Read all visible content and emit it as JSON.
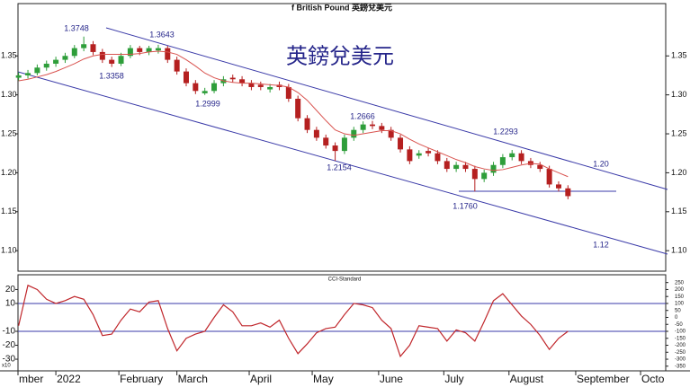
{
  "chart_data": [
    {
      "type": "candlestick",
      "title": "f British Pound 英鎊兌美元",
      "x": [
        -12,
        -9,
        -6,
        -3,
        0,
        3,
        6,
        9,
        12,
        15,
        18,
        21,
        24,
        27,
        30,
        33,
        36,
        39,
        42,
        45,
        48,
        51,
        54,
        57,
        60,
        63,
        66,
        69,
        72,
        75,
        78,
        81,
        84,
        87,
        90,
        93,
        96,
        99,
        102,
        105,
        108,
        111,
        114,
        117,
        120,
        123,
        126,
        129,
        132,
        135,
        138,
        141,
        144,
        147,
        150,
        153,
        156,
        159,
        162,
        165
      ],
      "open": [
        1.322,
        1.325,
        1.328,
        1.335,
        1.34,
        1.345,
        1.35,
        1.36,
        1.365,
        1.355,
        1.345,
        1.34,
        1.35,
        1.36,
        1.355,
        1.357,
        1.36,
        1.345,
        1.33,
        1.315,
        1.302,
        1.305,
        1.315,
        1.322,
        1.32,
        1.315,
        1.313,
        1.307,
        1.313,
        1.31,
        1.295,
        1.27,
        1.255,
        1.245,
        1.235,
        1.228,
        1.245,
        1.255,
        1.262,
        1.26,
        1.255,
        1.245,
        1.23,
        1.222,
        1.228,
        1.225,
        1.215,
        1.205,
        1.21,
        1.205,
        1.192,
        1.2,
        1.21,
        1.22,
        1.225,
        1.215,
        1.21,
        1.205,
        1.185,
        1.18
      ],
      "high": [
        1.329,
        1.332,
        1.339,
        1.344,
        1.349,
        1.354,
        1.364,
        1.3748,
        1.369,
        1.359,
        1.349,
        1.354,
        1.364,
        1.363,
        1.363,
        1.3643,
        1.363,
        1.349,
        1.334,
        1.319,
        1.309,
        1.319,
        1.324,
        1.326,
        1.324,
        1.319,
        1.317,
        1.314,
        1.317,
        1.314,
        1.299,
        1.274,
        1.259,
        1.249,
        1.239,
        1.249,
        1.259,
        1.266,
        1.2666,
        1.264,
        1.259,
        1.249,
        1.234,
        1.229,
        1.232,
        1.229,
        1.219,
        1.214,
        1.214,
        1.209,
        1.204,
        1.214,
        1.224,
        1.2293,
        1.229,
        1.219,
        1.214,
        1.209,
        1.189,
        1.184
      ],
      "low": [
        1.318,
        1.321,
        1.325,
        1.331,
        1.336,
        1.341,
        1.347,
        1.356,
        1.351,
        1.341,
        1.3358,
        1.337,
        1.347,
        1.351,
        1.351,
        1.353,
        1.341,
        1.326,
        1.311,
        1.301,
        1.2999,
        1.302,
        1.311,
        1.316,
        1.311,
        1.306,
        1.306,
        1.303,
        1.306,
        1.291,
        1.266,
        1.251,
        1.241,
        1.231,
        1.2154,
        1.224,
        1.241,
        1.251,
        1.256,
        1.251,
        1.241,
        1.226,
        1.211,
        1.218,
        1.221,
        1.211,
        1.201,
        1.201,
        1.201,
        1.176,
        1.188,
        1.196,
        1.206,
        1.216,
        1.211,
        1.206,
        1.201,
        1.181,
        1.176,
        1.166
      ],
      "close": [
        1.325,
        1.328,
        1.335,
        1.34,
        1.345,
        1.35,
        1.36,
        1.365,
        1.355,
        1.345,
        1.34,
        1.35,
        1.36,
        1.355,
        1.36,
        1.36,
        1.345,
        1.33,
        1.315,
        1.305,
        1.305,
        1.315,
        1.32,
        1.32,
        1.315,
        1.31,
        1.31,
        1.31,
        1.31,
        1.295,
        1.27,
        1.255,
        1.245,
        1.235,
        1.228,
        1.245,
        1.255,
        1.262,
        1.26,
        1.255,
        1.245,
        1.23,
        1.215,
        1.225,
        1.225,
        1.215,
        1.205,
        1.21,
        1.205,
        1.192,
        1.2,
        1.21,
        1.22,
        1.225,
        1.215,
        1.21,
        1.205,
        1.185,
        1.18,
        1.17
      ],
      "up_color": "#2e9e3a",
      "down_color": "#b52020",
      "series": [
        {
          "color": "#d9534f",
          "values": [
            1.318,
            1.32,
            1.323,
            1.326,
            1.33,
            1.335,
            1.34,
            1.346,
            1.35,
            1.352,
            1.352,
            1.352,
            1.352,
            1.353,
            1.355,
            1.356,
            1.355,
            1.352,
            1.345,
            1.337,
            1.328,
            1.322,
            1.318,
            1.316,
            1.315,
            1.315,
            1.314,
            1.313,
            1.312,
            1.31,
            1.303,
            1.293,
            1.28,
            1.267,
            1.255,
            1.25,
            1.248,
            1.25,
            1.252,
            1.254,
            1.254,
            1.25,
            1.243,
            1.237,
            1.232,
            1.227,
            1.222,
            1.217,
            1.213,
            1.208,
            1.205,
            1.203,
            1.204,
            1.207,
            1.21,
            1.212,
            1.211,
            1.205,
            1.2,
            1.195
          ]
        }
      ],
      "xlim": [
        -12.2,
        196.5
      ],
      "ylim": [
        1.076,
        1.416
      ],
      "yticks": [
        1.35,
        {
          "value": 1.3,
          "label": "1.30"
        },
        1.25,
        {
          "value": 1.2,
          "label": "1.20"
        },
        1.15,
        {
          "value": 1.1,
          "label": "1.10"
        }
      ],
      "annotations": [
        "1.3748",
        "1.3643",
        "1.3358",
        "1.2999",
        "1.2666",
        "1.2154",
        "1.2293",
        "1.1760",
        "1.20",
        "1.12",
        "英鎊兌美元"
      ]
    },
    {
      "type": "line",
      "title": "CCI-Standard",
      "scale_note": "x10",
      "x": [
        -12,
        -9,
        -6,
        -3,
        0,
        3,
        6,
        9,
        12,
        15,
        18,
        21,
        24,
        27,
        30,
        33,
        36,
        39,
        42,
        45,
        48,
        51,
        54,
        57,
        60,
        63,
        66,
        69,
        72,
        75,
        78,
        81,
        84,
        87,
        90,
        93,
        96,
        99,
        102,
        105,
        108,
        111,
        114,
        117,
        120,
        123,
        126,
        129,
        132,
        135,
        138,
        141,
        144,
        147,
        150,
        153,
        156,
        159,
        162,
        165
      ],
      "values": [
        -60,
        230,
        200,
        130,
        100,
        120,
        150,
        130,
        20,
        -130,
        -120,
        -20,
        60,
        40,
        110,
        120,
        -80,
        -240,
        -150,
        -120,
        -100,
        0,
        90,
        40,
        -60,
        -60,
        -40,
        -70,
        -20,
        -150,
        -260,
        -190,
        -110,
        -80,
        -70,
        20,
        100,
        90,
        70,
        -20,
        -80,
        -280,
        -200,
        -60,
        -70,
        -80,
        -170,
        -90,
        -110,
        -170,
        -30,
        120,
        170,
        90,
        10,
        -50,
        -130,
        -230,
        -150,
        -100
      ],
      "color": "#c0262b",
      "hlines": [
        100,
        -100
      ],
      "hline_color": "#3a3aa8",
      "xlim": [
        -12.2,
        196.5
      ],
      "ylim": [
        -377,
        293
      ],
      "yticks": [
        250,
        200,
        150,
        100,
        50,
        0,
        -50,
        -100,
        -150,
        -200,
        -250,
        -300,
        -350
      ],
      "yticks_left": [
        {
          "value": 200,
          "label": "20"
        },
        {
          "value": 100,
          "label": "10"
        },
        {
          "value": -100,
          "label": "-10"
        },
        {
          "value": -200,
          "label": "-20"
        },
        {
          "value": -300,
          "label": "-30"
        }
      ],
      "xticks": [
        {
          "value": -12.2,
          "label": "mber"
        },
        {
          "value": 0,
          "label": "2022"
        },
        {
          "value": 20.3,
          "label": "February"
        },
        {
          "value": 39,
          "label": "March"
        },
        {
          "value": 62.3,
          "label": "April"
        },
        {
          "value": 82.6,
          "label": "May"
        },
        {
          "value": 104,
          "label": "June"
        },
        {
          "value": 125,
          "label": "July"
        },
        {
          "value": 146,
          "label": "August"
        },
        {
          "value": 167.5,
          "label": "September"
        },
        {
          "value": 188.4,
          "label": "Octo"
        }
      ]
    }
  ]
}
